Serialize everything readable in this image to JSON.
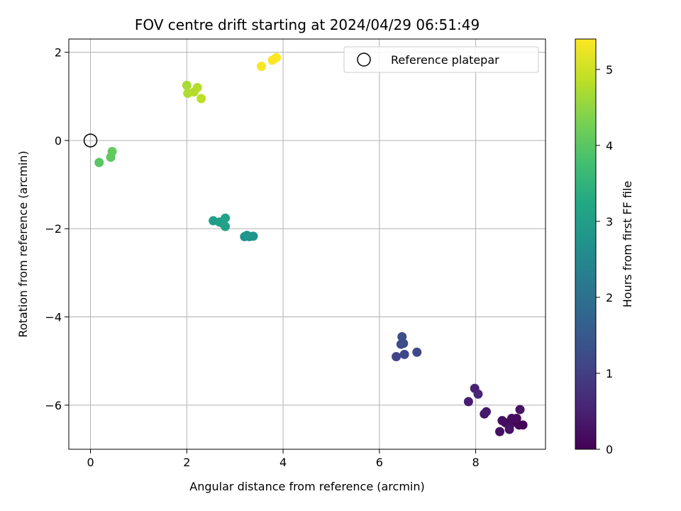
{
  "chart_data": {
    "type": "scatter",
    "title": "FOV centre drift starting at 2024/04/29 06:51:49",
    "xlabel": "Angular distance from reference (arcmin)",
    "ylabel": "Rotation from reference (arcmin)",
    "xlim": [
      -0.45,
      9.45
    ],
    "ylim": [
      -7.0,
      2.3
    ],
    "xticks": [
      0,
      2,
      4,
      6,
      8
    ],
    "yticks": [
      -6,
      -4,
      -2,
      0,
      2
    ],
    "xtick_labels": [
      "0",
      "2",
      "4",
      "6",
      "8"
    ],
    "ytick_labels": [
      "−6",
      "−4",
      "−2",
      "0",
      "2"
    ],
    "grid": true,
    "legend": {
      "position": "top-right",
      "entries": [
        "Reference platepar"
      ]
    },
    "reference_point": {
      "x": 0,
      "y": 0,
      "marker": "open-circle"
    },
    "colorbar": {
      "label": "Hours from first FF file",
      "colormap": "viridis",
      "range": [
        0,
        5.4
      ],
      "ticks": [
        0,
        1,
        2,
        3,
        4,
        5
      ],
      "tick_labels": [
        "0",
        "1",
        "2",
        "3",
        "4",
        "5"
      ]
    },
    "points": [
      {
        "x": 8.9,
        "y": -6.45,
        "hours": 0.02
      },
      {
        "x": 8.98,
        "y": -6.45,
        "hours": 0.05
      },
      {
        "x": 8.72,
        "y": -6.42,
        "hours": 0.08
      },
      {
        "x": 8.78,
        "y": -6.38,
        "hours": 0.1
      },
      {
        "x": 8.62,
        "y": -6.4,
        "hours": 0.12
      },
      {
        "x": 8.85,
        "y": -6.3,
        "hours": 0.15
      },
      {
        "x": 8.75,
        "y": -6.3,
        "hours": 0.18
      },
      {
        "x": 8.55,
        "y": -6.35,
        "hours": 0.2
      },
      {
        "x": 8.7,
        "y": -6.5,
        "hours": 0.22
      },
      {
        "x": 8.5,
        "y": -6.6,
        "hours": 0.25
      },
      {
        "x": 8.92,
        "y": -6.1,
        "hours": 0.28
      },
      {
        "x": 8.7,
        "y": -6.55,
        "hours": 0.3
      },
      {
        "x": 8.18,
        "y": -6.2,
        "hours": 0.35
      },
      {
        "x": 8.22,
        "y": -6.15,
        "hours": 0.38
      },
      {
        "x": 7.85,
        "y": -5.92,
        "hours": 0.45
      },
      {
        "x": 7.98,
        "y": -5.62,
        "hours": 0.5
      },
      {
        "x": 8.05,
        "y": -5.75,
        "hours": 0.55
      },
      {
        "x": 6.35,
        "y": -4.9,
        "hours": 1.1
      },
      {
        "x": 6.52,
        "y": -4.85,
        "hours": 1.15
      },
      {
        "x": 6.78,
        "y": -4.8,
        "hours": 1.2
      },
      {
        "x": 6.45,
        "y": -4.62,
        "hours": 1.25
      },
      {
        "x": 6.5,
        "y": -4.6,
        "hours": 1.28
      },
      {
        "x": 6.47,
        "y": -4.45,
        "hours": 1.3
      },
      {
        "x": 3.2,
        "y": -2.18,
        "hours": 2.75
      },
      {
        "x": 3.3,
        "y": -2.18,
        "hours": 2.78
      },
      {
        "x": 3.38,
        "y": -2.17,
        "hours": 2.8
      },
      {
        "x": 3.25,
        "y": -2.15,
        "hours": 2.82
      },
      {
        "x": 2.55,
        "y": -1.82,
        "hours": 3.0
      },
      {
        "x": 2.68,
        "y": -1.85,
        "hours": 3.02
      },
      {
        "x": 2.75,
        "y": -1.88,
        "hours": 3.05
      },
      {
        "x": 2.8,
        "y": -1.95,
        "hours": 3.08
      },
      {
        "x": 2.8,
        "y": -1.76,
        "hours": 3.1
      },
      {
        "x": 0.18,
        "y": -0.5,
        "hours": 4.0
      },
      {
        "x": 0.42,
        "y": -0.38,
        "hours": 4.05
      },
      {
        "x": 0.45,
        "y": -0.25,
        "hours": 4.1
      },
      {
        "x": 2.0,
        "y": 1.25,
        "hours": 4.7
      },
      {
        "x": 2.02,
        "y": 1.07,
        "hours": 4.75
      },
      {
        "x": 2.15,
        "y": 1.1,
        "hours": 4.78
      },
      {
        "x": 2.22,
        "y": 1.2,
        "hours": 4.8
      },
      {
        "x": 2.3,
        "y": 0.95,
        "hours": 4.85
      },
      {
        "x": 3.55,
        "y": 1.68,
        "hours": 5.35
      },
      {
        "x": 3.78,
        "y": 1.82,
        "hours": 5.38
      },
      {
        "x": 3.86,
        "y": 1.88,
        "hours": 5.4
      }
    ]
  }
}
